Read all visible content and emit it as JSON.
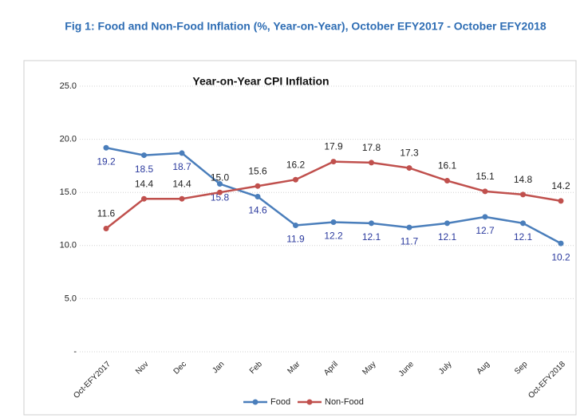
{
  "chart_data": {
    "type": "line",
    "figure_title": "Fig 1: Food and Non-Food Inflation (%, Year-on-Year), October EFY2017 - October EFY2018",
    "title": "Year-on-Year CPI Inflation",
    "categories": [
      "Oct-EFY2017",
      "Nov",
      "Dec",
      "Jan",
      "Feb",
      "Mar",
      "April",
      "May",
      "June",
      "July",
      "Aug",
      "Sep",
      "Oct-EFY2018"
    ],
    "series": [
      {
        "name": "Food",
        "color": "#4a7ebb",
        "values": [
          19.2,
          18.5,
          18.7,
          15.8,
          14.6,
          11.9,
          12.2,
          12.1,
          11.7,
          12.1,
          12.7,
          12.1,
          10.2
        ]
      },
      {
        "name": "Non-Food",
        "color": "#c0504d",
        "values": [
          11.6,
          14.4,
          14.4,
          15.0,
          15.6,
          16.2,
          17.9,
          17.8,
          17.3,
          16.1,
          15.1,
          14.8,
          14.2
        ],
        "value_labels": [
          "11.6",
          "14.4",
          "14.4",
          "15.0",
          "15.6",
          "16.2",
          "17.9",
          "17.8",
          "17.3",
          "16.1",
          "15.1",
          "14.8",
          "14.2"
        ]
      }
    ],
    "ylim": [
      0,
      25
    ],
    "yticks": [
      {
        "value": 0,
        "label": "-"
      },
      {
        "value": 5,
        "label": "5.0"
      },
      {
        "value": 10,
        "label": "10.0"
      },
      {
        "value": 15,
        "label": "15.0"
      },
      {
        "value": 20,
        "label": "20.0"
      },
      {
        "value": 25,
        "label": "25.0"
      }
    ],
    "grid": true,
    "legend": "bottom"
  }
}
